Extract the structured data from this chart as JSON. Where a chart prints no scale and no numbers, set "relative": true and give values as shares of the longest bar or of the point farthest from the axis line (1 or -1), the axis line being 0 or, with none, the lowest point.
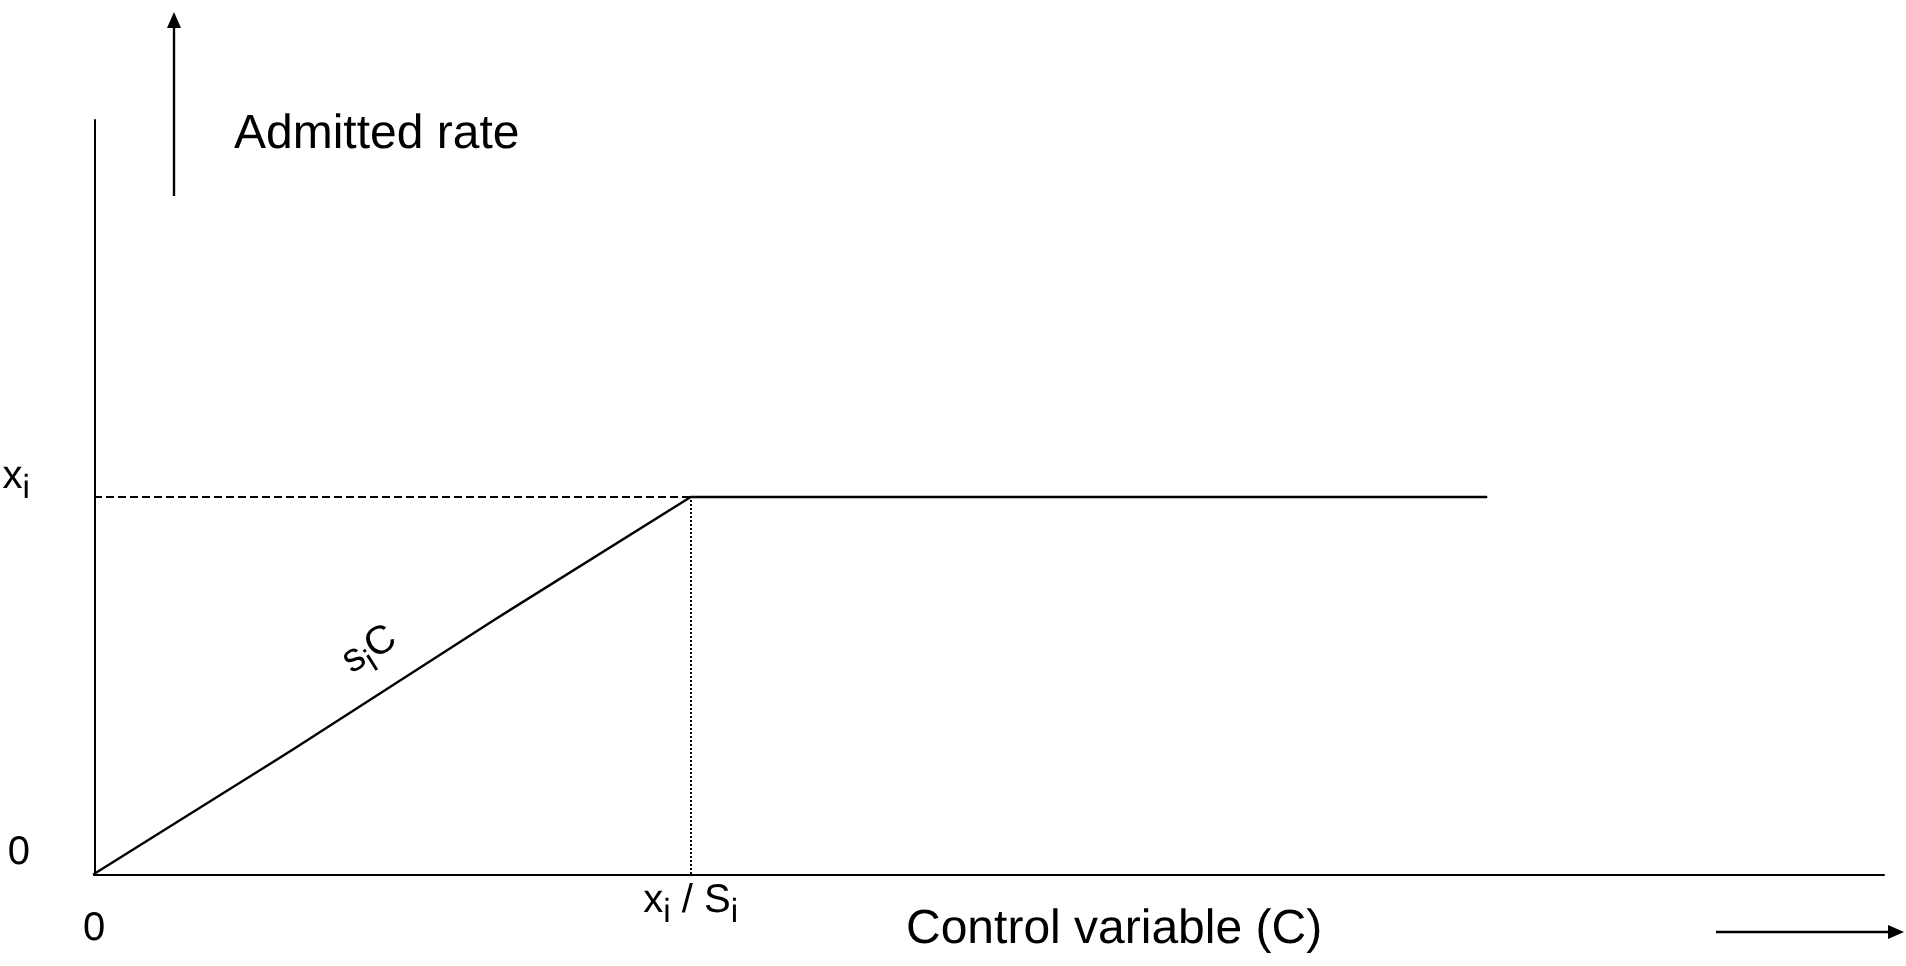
{
  "chart_data": {
    "type": "line",
    "xlabel": "Control variable (C)",
    "relative": true,
    "categories": [
      "0",
      null,
      null,
      "x$_{i}$ / S$_{i}$",
      null,
      null,
      null,
      null,
      null,
      null
    ],
    "series": [
      {
        "color": "#000000",
        "values": [
          0,
          0.33,
          0.67,
          1,
          1,
          1,
          1,
          1,
          null,
          null
        ]
      }
    ],
    "ref_lines": [
      {
        "axis": "y",
        "value": 1,
        "line_style": "dashed",
        "color": "#000000"
      },
      {
        "axis": "x",
        "value": "x$_{i}$ / S$_{i}$",
        "line_style": "dotted",
        "color": "#000000"
      }
    ],
    "annotations": [
      "s$_{i}$C",
      "x$_{i}$",
      "0",
      "Admitted rate"
    ],
    "grid": false,
    "marker": "none",
    "line_style": "solid"
  }
}
